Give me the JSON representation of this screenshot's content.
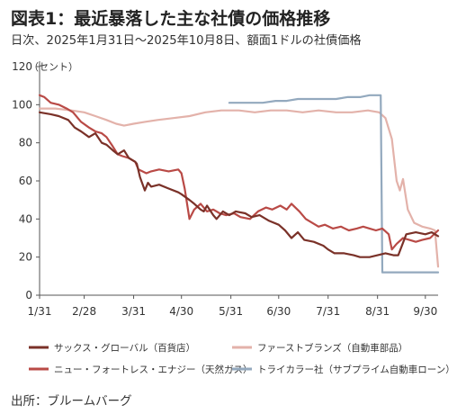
{
  "title": "図表1：最近暴落した主な社債の価格推移",
  "subtitle": "日次、2025年1月31日～2025年10月8日、額面1ドルの社債価格",
  "source": "出所：ブルームバーグ",
  "chart_data": {
    "type": "line",
    "ylabel_unit": "（セント）",
    "ylim": [
      0,
      120
    ],
    "y_ticks": [
      0,
      20,
      40,
      60,
      80,
      100,
      120
    ],
    "x_range": [
      "2025-01-31",
      "2025-10-08"
    ],
    "x_ticks": [
      {
        "date": "2025-01-31",
        "label": "1/31"
      },
      {
        "date": "2025-02-28",
        "label": "2/28"
      },
      {
        "date": "2025-03-31",
        "label": "3/31"
      },
      {
        "date": "2025-04-30",
        "label": "4/30"
      },
      {
        "date": "2025-05-31",
        "label": "5/31"
      },
      {
        "date": "2025-06-30",
        "label": "6/30"
      },
      {
        "date": "2025-07-31",
        "label": "7/31"
      },
      {
        "date": "2025-08-31",
        "label": "8/31"
      },
      {
        "date": "2025-09-30",
        "label": "9/30"
      }
    ],
    "grid": false,
    "legend_position": "bottom",
    "series": [
      {
        "name": "サックス・グローバル（百貨店）",
        "color": "#7a3128",
        "points": [
          [
            "2025-01-31",
            96
          ],
          [
            "2025-02-07",
            95
          ],
          [
            "2025-02-12",
            94
          ],
          [
            "2025-02-18",
            92
          ],
          [
            "2025-02-22",
            88
          ],
          [
            "2025-02-26",
            86
          ],
          [
            "2025-03-03",
            83
          ],
          [
            "2025-03-07",
            85
          ],
          [
            "2025-03-11",
            80
          ],
          [
            "2025-03-14",
            79
          ],
          [
            "2025-03-18",
            76
          ],
          [
            "2025-03-21",
            74
          ],
          [
            "2025-03-25",
            76
          ],
          [
            "2025-03-28",
            72
          ],
          [
            "2025-04-01",
            70
          ],
          [
            "2025-04-02",
            69
          ],
          [
            "2025-04-04",
            62
          ],
          [
            "2025-04-07",
            55
          ],
          [
            "2025-04-09",
            59
          ],
          [
            "2025-04-11",
            57
          ],
          [
            "2025-04-16",
            58
          ],
          [
            "2025-04-22",
            56
          ],
          [
            "2025-04-28",
            54
          ],
          [
            "2025-04-30",
            53
          ],
          [
            "2025-05-05",
            50
          ],
          [
            "2025-05-08",
            48
          ],
          [
            "2025-05-12",
            45
          ],
          [
            "2025-05-14",
            44
          ],
          [
            "2025-05-16",
            47
          ],
          [
            "2025-05-20",
            42
          ],
          [
            "2025-05-22",
            40
          ],
          [
            "2025-05-26",
            44
          ],
          [
            "2025-05-30",
            42
          ],
          [
            "2025-06-03",
            44
          ],
          [
            "2025-06-09",
            43
          ],
          [
            "2025-06-13",
            41
          ],
          [
            "2025-06-18",
            42
          ],
          [
            "2025-06-24",
            39
          ],
          [
            "2025-06-30",
            37
          ],
          [
            "2025-07-04",
            34
          ],
          [
            "2025-07-08",
            30
          ],
          [
            "2025-07-12",
            33
          ],
          [
            "2025-07-16",
            29
          ],
          [
            "2025-07-22",
            28
          ],
          [
            "2025-07-28",
            26
          ],
          [
            "2025-07-31",
            24
          ],
          [
            "2025-08-04",
            22
          ],
          [
            "2025-08-10",
            22
          ],
          [
            "2025-08-16",
            21
          ],
          [
            "2025-08-20",
            20
          ],
          [
            "2025-08-26",
            20
          ],
          [
            "2025-08-31",
            21
          ],
          [
            "2025-09-05",
            22
          ],
          [
            "2025-09-10",
            21
          ],
          [
            "2025-09-13",
            21
          ],
          [
            "2025-09-18",
            32
          ],
          [
            "2025-09-24",
            33
          ],
          [
            "2025-09-30",
            32
          ],
          [
            "2025-10-04",
            33
          ],
          [
            "2025-10-08",
            31
          ]
        ]
      },
      {
        "name": "ファーストブランズ（自動車部品）",
        "color": "#e3b2aa",
        "points": [
          [
            "2025-01-31",
            98
          ],
          [
            "2025-02-10",
            98
          ],
          [
            "2025-02-20",
            97
          ],
          [
            "2025-02-28",
            96
          ],
          [
            "2025-03-07",
            94
          ],
          [
            "2025-03-14",
            92
          ],
          [
            "2025-03-20",
            90
          ],
          [
            "2025-03-25",
            89
          ],
          [
            "2025-03-31",
            90
          ],
          [
            "2025-04-07",
            91
          ],
          [
            "2025-04-15",
            92
          ],
          [
            "2025-04-25",
            93
          ],
          [
            "2025-05-05",
            94
          ],
          [
            "2025-05-15",
            96
          ],
          [
            "2025-05-25",
            97
          ],
          [
            "2025-06-05",
            97
          ],
          [
            "2025-06-15",
            96
          ],
          [
            "2025-06-25",
            97
          ],
          [
            "2025-07-05",
            97
          ],
          [
            "2025-07-15",
            96
          ],
          [
            "2025-07-25",
            97
          ],
          [
            "2025-08-05",
            96
          ],
          [
            "2025-08-15",
            96
          ],
          [
            "2025-08-25",
            97
          ],
          [
            "2025-09-01",
            96
          ],
          [
            "2025-09-05",
            93
          ],
          [
            "2025-09-09",
            82
          ],
          [
            "2025-09-12",
            60
          ],
          [
            "2025-09-14",
            55
          ],
          [
            "2025-09-16",
            61
          ],
          [
            "2025-09-19",
            45
          ],
          [
            "2025-09-23",
            38
          ],
          [
            "2025-09-28",
            36
          ],
          [
            "2025-10-03",
            35
          ],
          [
            "2025-10-06",
            34
          ],
          [
            "2025-10-08",
            15
          ]
        ]
      },
      {
        "name": "ニュー・フォートレス・エナジー（天然ガス）",
        "color": "#b94a46",
        "points": [
          [
            "2025-01-31",
            105
          ],
          [
            "2025-02-03",
            104
          ],
          [
            "2025-02-07",
            101
          ],
          [
            "2025-02-12",
            100
          ],
          [
            "2025-02-17",
            98
          ],
          [
            "2025-02-21",
            96
          ],
          [
            "2025-02-26",
            91
          ],
          [
            "2025-03-03",
            88
          ],
          [
            "2025-03-07",
            86
          ],
          [
            "2025-03-11",
            85
          ],
          [
            "2025-03-14",
            83
          ],
          [
            "2025-03-18",
            78
          ],
          [
            "2025-03-21",
            74
          ],
          [
            "2025-03-24",
            73
          ],
          [
            "2025-03-28",
            72
          ],
          [
            "2025-04-01",
            70
          ],
          [
            "2025-04-03",
            66
          ],
          [
            "2025-04-08",
            64
          ],
          [
            "2025-04-11",
            65
          ],
          [
            "2025-04-16",
            66
          ],
          [
            "2025-04-22",
            65
          ],
          [
            "2025-04-28",
            66
          ],
          [
            "2025-04-30",
            64
          ],
          [
            "2025-05-02",
            56
          ],
          [
            "2025-05-05",
            40
          ],
          [
            "2025-05-08",
            45
          ],
          [
            "2025-05-12",
            48
          ],
          [
            "2025-05-16",
            44
          ],
          [
            "2025-05-20",
            45
          ],
          [
            "2025-05-24",
            43
          ],
          [
            "2025-05-28",
            42
          ],
          [
            "2025-06-02",
            43
          ],
          [
            "2025-06-06",
            41
          ],
          [
            "2025-06-12",
            40
          ],
          [
            "2025-06-17",
            44
          ],
          [
            "2025-06-22",
            46
          ],
          [
            "2025-06-26",
            45
          ],
          [
            "2025-07-01",
            47
          ],
          [
            "2025-07-05",
            45
          ],
          [
            "2025-07-08",
            48
          ],
          [
            "2025-07-13",
            44
          ],
          [
            "2025-07-17",
            40
          ],
          [
            "2025-07-21",
            38
          ],
          [
            "2025-07-25",
            36
          ],
          [
            "2025-07-29",
            37
          ],
          [
            "2025-08-03",
            35
          ],
          [
            "2025-08-08",
            36
          ],
          [
            "2025-08-13",
            34
          ],
          [
            "2025-08-18",
            35
          ],
          [
            "2025-08-22",
            36
          ],
          [
            "2025-08-26",
            35
          ],
          [
            "2025-08-30",
            34
          ],
          [
            "2025-09-03",
            35
          ],
          [
            "2025-09-07",
            32
          ],
          [
            "2025-09-09",
            24
          ],
          [
            "2025-09-12",
            27
          ],
          [
            "2025-09-16",
            30
          ],
          [
            "2025-09-20",
            29
          ],
          [
            "2025-09-24",
            28
          ],
          [
            "2025-09-28",
            29
          ],
          [
            "2025-10-03",
            30
          ],
          [
            "2025-10-08",
            34
          ]
        ]
      },
      {
        "name": "トライカラー社（サブプライム自動車ローン）",
        "color": "#93a9be",
        "points": [
          [
            "2025-05-30",
            101
          ],
          [
            "2025-06-10",
            101
          ],
          [
            "2025-06-20",
            101
          ],
          [
            "2025-06-28",
            102
          ],
          [
            "2025-07-05",
            102
          ],
          [
            "2025-07-12",
            103
          ],
          [
            "2025-07-20",
            103
          ],
          [
            "2025-07-28",
            103
          ],
          [
            "2025-08-05",
            103
          ],
          [
            "2025-08-12",
            104
          ],
          [
            "2025-08-20",
            104
          ],
          [
            "2025-08-26",
            105
          ],
          [
            "2025-09-01",
            105
          ],
          [
            "2025-09-02",
            105
          ],
          [
            "2025-09-03",
            12
          ],
          [
            "2025-09-10",
            12
          ],
          [
            "2025-09-20",
            12
          ],
          [
            "2025-09-30",
            12
          ],
          [
            "2025-10-08",
            12
          ]
        ]
      }
    ]
  }
}
